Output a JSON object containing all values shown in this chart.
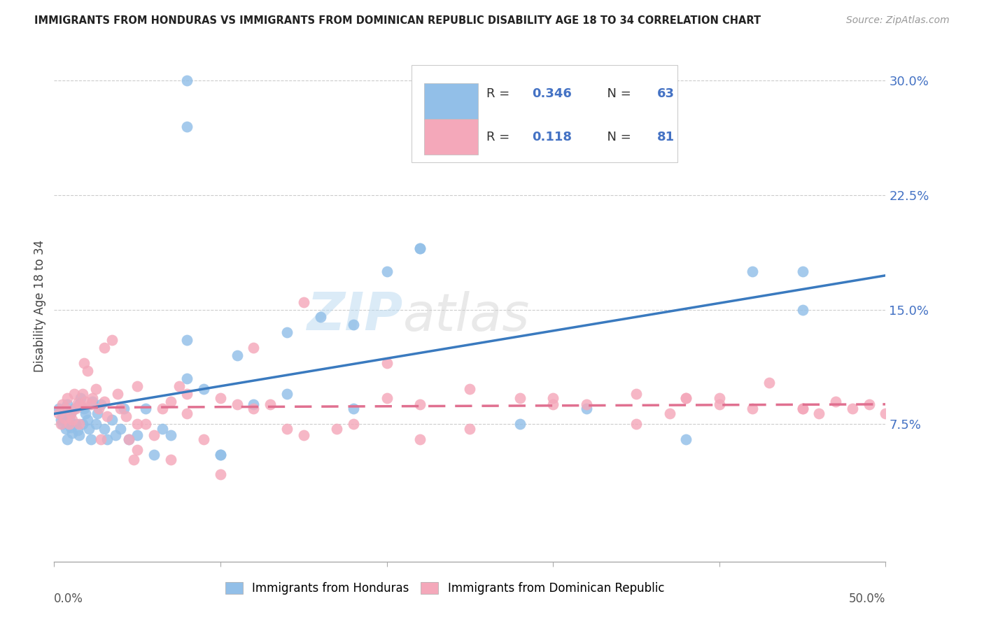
{
  "title": "IMMIGRANTS FROM HONDURAS VS IMMIGRANTS FROM DOMINICAN REPUBLIC DISABILITY AGE 18 TO 34 CORRELATION CHART",
  "source": "Source: ZipAtlas.com",
  "ylabel": "Disability Age 18 to 34",
  "xlim": [
    0.0,
    0.5
  ],
  "ylim": [
    -0.015,
    0.32
  ],
  "ytick_vals": [
    0.075,
    0.15,
    0.225,
    0.3
  ],
  "ytick_labels": [
    "7.5%",
    "15.0%",
    "22.5%",
    "30.0%"
  ],
  "label_honduras": "Immigrants from Honduras",
  "label_dominican": "Immigrants from Dominican Republic",
  "color_honduras": "#92bfe8",
  "color_dominican": "#f4a8ba",
  "color_line_honduras": "#3a7abf",
  "color_line_dominican": "#e07090",
  "watermark_zip": "ZIP",
  "watermark_atlas": "atlas",
  "legend_r1_label": "R = ",
  "legend_r1_val": "0.346",
  "legend_n1_label": "  N = ",
  "legend_n1_val": "63",
  "legend_r2_label": "R =  ",
  "legend_r2_val": "0.118",
  "legend_n2_label": "  N = ",
  "legend_n2_val": "81",
  "R_honduras": 0.346,
  "N_honduras": 63,
  "R_dominican": 0.118,
  "N_dominican": 81,
  "hon_x": [
    0.003,
    0.004,
    0.005,
    0.005,
    0.006,
    0.007,
    0.008,
    0.008,
    0.009,
    0.01,
    0.01,
    0.011,
    0.012,
    0.013,
    0.014,
    0.015,
    0.015,
    0.016,
    0.017,
    0.018,
    0.019,
    0.02,
    0.021,
    0.022,
    0.023,
    0.025,
    0.026,
    0.028,
    0.03,
    0.032,
    0.035,
    0.037,
    0.04,
    0.042,
    0.045,
    0.05,
    0.055,
    0.06,
    0.065,
    0.07,
    0.08,
    0.09,
    0.1,
    0.11,
    0.12,
    0.14,
    0.16,
    0.18,
    0.2,
    0.22,
    0.08,
    0.14,
    0.18,
    0.22,
    0.28,
    0.32,
    0.38,
    0.42,
    0.45,
    0.08,
    0.1,
    0.45,
    0.08
  ],
  "hon_y": [
    0.085,
    0.078,
    0.08,
    0.075,
    0.082,
    0.072,
    0.065,
    0.088,
    0.079,
    0.073,
    0.082,
    0.069,
    0.085,
    0.075,
    0.071,
    0.068,
    0.088,
    0.092,
    0.075,
    0.085,
    0.082,
    0.078,
    0.072,
    0.065,
    0.09,
    0.075,
    0.082,
    0.088,
    0.072,
    0.065,
    0.078,
    0.068,
    0.072,
    0.085,
    0.065,
    0.068,
    0.085,
    0.055,
    0.072,
    0.068,
    0.105,
    0.098,
    0.055,
    0.12,
    0.088,
    0.135,
    0.145,
    0.14,
    0.175,
    0.19,
    0.13,
    0.095,
    0.085,
    0.19,
    0.075,
    0.085,
    0.065,
    0.175,
    0.15,
    0.27,
    0.055,
    0.175,
    0.3
  ],
  "dom_x": [
    0.003,
    0.004,
    0.005,
    0.006,
    0.007,
    0.008,
    0.009,
    0.01,
    0.011,
    0.012,
    0.013,
    0.014,
    0.015,
    0.016,
    0.017,
    0.018,
    0.019,
    0.02,
    0.022,
    0.023,
    0.025,
    0.027,
    0.028,
    0.03,
    0.032,
    0.035,
    0.038,
    0.04,
    0.043,
    0.045,
    0.048,
    0.05,
    0.055,
    0.06,
    0.065,
    0.07,
    0.075,
    0.08,
    0.09,
    0.1,
    0.11,
    0.12,
    0.13,
    0.14,
    0.15,
    0.17,
    0.2,
    0.22,
    0.25,
    0.28,
    0.3,
    0.32,
    0.35,
    0.37,
    0.38,
    0.4,
    0.42,
    0.43,
    0.45,
    0.46,
    0.47,
    0.48,
    0.49,
    0.5,
    0.03,
    0.05,
    0.08,
    0.12,
    0.2,
    0.3,
    0.35,
    0.4,
    0.45,
    0.25,
    0.15,
    0.1,
    0.05,
    0.07,
    0.18,
    0.22,
    0.38
  ],
  "dom_y": [
    0.082,
    0.075,
    0.088,
    0.079,
    0.085,
    0.092,
    0.075,
    0.082,
    0.078,
    0.095,
    0.085,
    0.089,
    0.075,
    0.088,
    0.095,
    0.115,
    0.09,
    0.11,
    0.088,
    0.092,
    0.098,
    0.085,
    0.065,
    0.09,
    0.08,
    0.13,
    0.095,
    0.085,
    0.08,
    0.065,
    0.052,
    0.058,
    0.075,
    0.068,
    0.085,
    0.09,
    0.1,
    0.082,
    0.065,
    0.042,
    0.088,
    0.085,
    0.088,
    0.072,
    0.068,
    0.072,
    0.092,
    0.088,
    0.072,
    0.092,
    0.092,
    0.088,
    0.075,
    0.082,
    0.092,
    0.088,
    0.085,
    0.102,
    0.085,
    0.082,
    0.09,
    0.085,
    0.088,
    0.082,
    0.125,
    0.1,
    0.095,
    0.125,
    0.115,
    0.088,
    0.095,
    0.092,
    0.085,
    0.098,
    0.155,
    0.092,
    0.075,
    0.052,
    0.075,
    0.065,
    0.092
  ]
}
